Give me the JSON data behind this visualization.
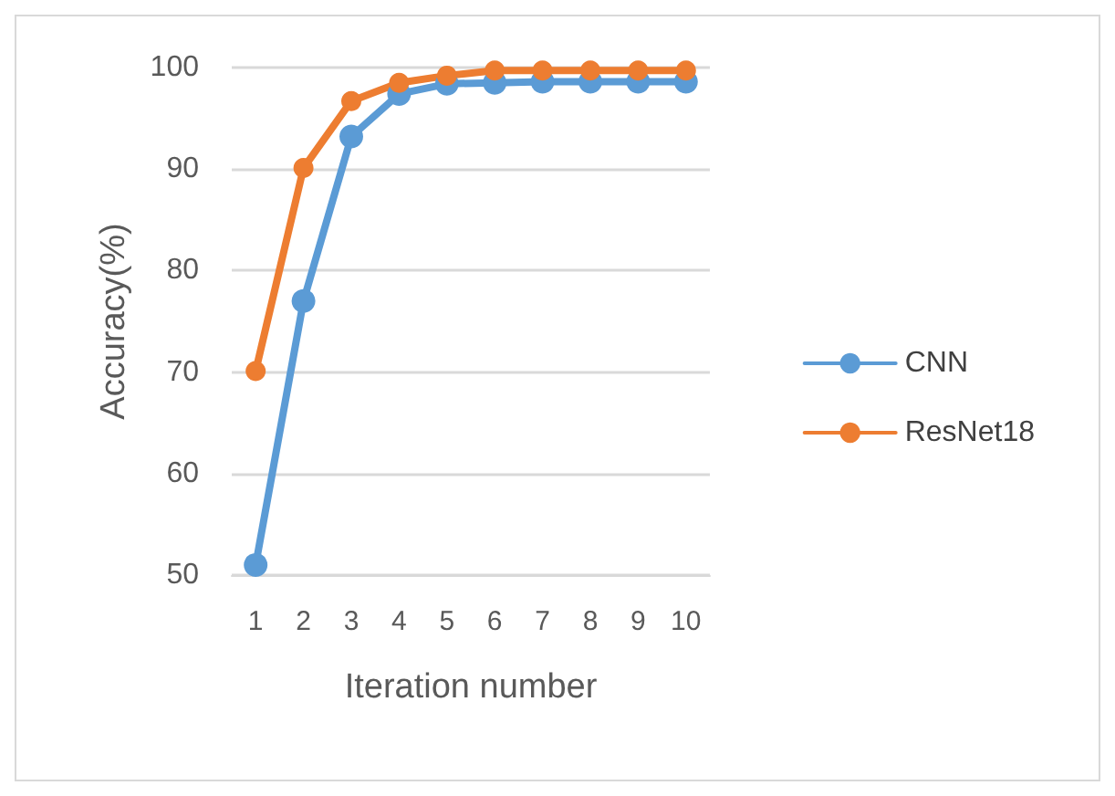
{
  "chart_data": {
    "type": "line",
    "xlabel": "Iteration number",
    "ylabel": "Accuracy(%)",
    "categories": [
      "1",
      "2",
      "3",
      "4",
      "5",
      "6",
      "7",
      "8",
      "9",
      "10"
    ],
    "series": [
      {
        "name": "CNN",
        "color": "#5b9bd5",
        "values": [
          51.0,
          77.0,
          93.2,
          97.4,
          98.4,
          98.5,
          98.6,
          98.6,
          98.6,
          98.6
        ]
      },
      {
        "name": "ResNet18",
        "color": "#ed7d31",
        "values": [
          70.1,
          90.1,
          96.7,
          98.5,
          99.2,
          99.7,
          99.7,
          99.7,
          99.7,
          99.7
        ]
      }
    ],
    "ylim": [
      50,
      100
    ],
    "yticks": [
      50,
      60,
      70,
      80,
      90,
      100
    ],
    "grid": "y",
    "legend": "right",
    "marker": "circle",
    "line_style": "solid"
  }
}
